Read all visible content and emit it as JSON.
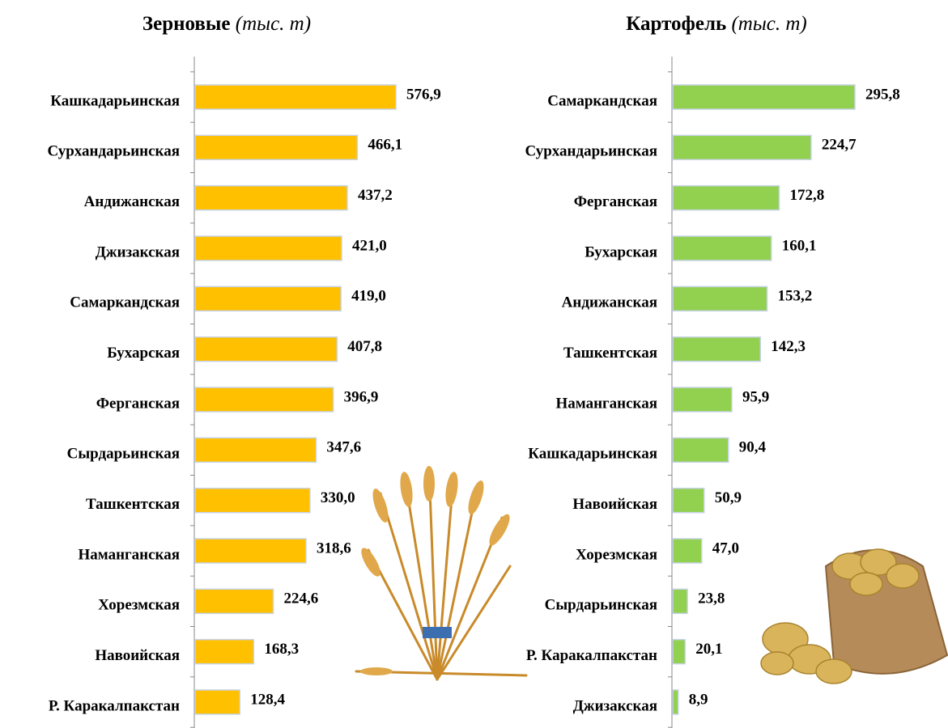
{
  "chart_data": [
    {
      "type": "hbar",
      "title": "Зерновые",
      "title_unit": "(тыс. т)",
      "color": "#FFC000",
      "categories": [
        "Кашкадарьинская",
        "Сурхандарьинская",
        "Андижанская",
        "Джизакская",
        "Самаркандская",
        "Бухарская",
        "Ферганская",
        "Сырдарьинская",
        "Ташкентская",
        "Наманганская",
        "Хорезмская",
        "Навоийская",
        "Р. Каракалпакстан"
      ],
      "values": [
        576.9,
        466.1,
        437.2,
        421.0,
        419.0,
        407.8,
        396.9,
        347.6,
        330.0,
        318.6,
        224.6,
        168.3,
        128.4
      ],
      "value_labels": [
        "576,9",
        "466,1",
        "437,2",
        "421,0",
        "419,0",
        "407,8",
        "396,9",
        "347,6",
        "330,0",
        "318,6",
        "224,6",
        "168,3",
        "128,4"
      ]
    },
    {
      "type": "hbar",
      "title": "Картофель",
      "title_unit": "(тыс. т)",
      "color": "#92D050",
      "categories": [
        "Самаркандская",
        "Сурхандарьинская",
        "Ферганская",
        "Бухарская",
        "Андижанская",
        "Ташкентская",
        "Наманганская",
        "Кашкадарьинская",
        "Навоийская",
        "Хорезмская",
        "Сырдарьинская",
        "Р. Каракалпакстан",
        "Джизакская"
      ],
      "values": [
        295.8,
        224.7,
        172.8,
        160.1,
        153.2,
        142.3,
        95.9,
        90.4,
        50.9,
        47.0,
        23.8,
        20.1,
        8.9
      ],
      "value_labels": [
        "295,8",
        "224,7",
        "172,8",
        "160,1",
        "153,2",
        "142,3",
        "95,9",
        "90,4",
        "50,9",
        "47,0",
        "23,8",
        "20,1",
        "8,9"
      ]
    }
  ]
}
